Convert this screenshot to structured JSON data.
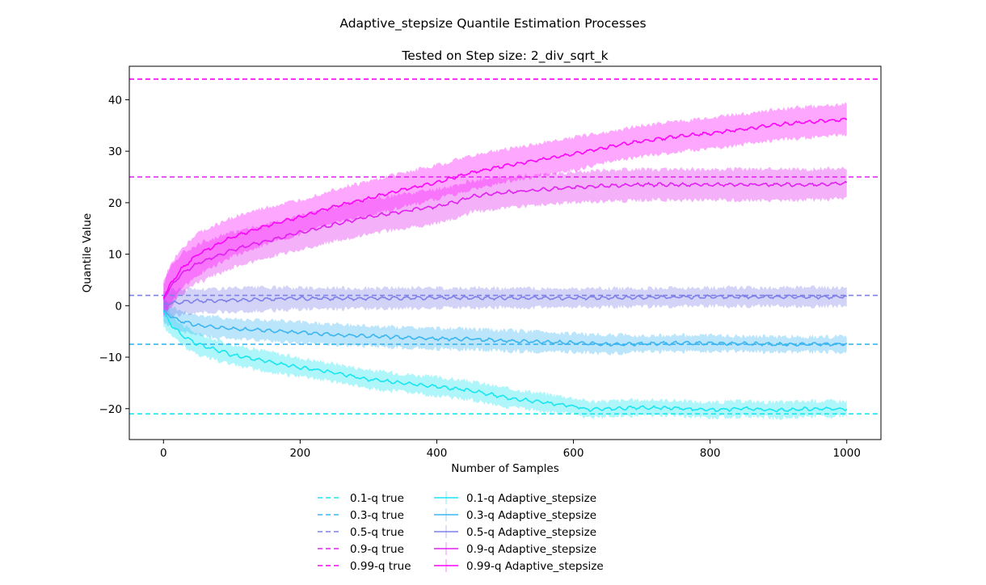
{
  "figure": {
    "suptitle": "Adaptive_stepsize Quantile Estimation Processes"
  },
  "chart_data": {
    "type": "line",
    "title": "Tested on Step size: 2_div_sqrt_k",
    "xlabel": "Number of Samples",
    "ylabel": "Quantile Value",
    "xlim": [
      -50,
      1050
    ],
    "ylim": [
      -26,
      46.5
    ],
    "xticks": [
      "0",
      "200",
      "400",
      "600",
      "800",
      "1000"
    ],
    "yticks": [
      "−20",
      "−10",
      "0",
      "10",
      "20",
      "30",
      "40"
    ],
    "grid": false,
    "legend_position": "bottom-center",
    "true_lines": [
      {
        "name": "0.1-q true",
        "value": -21.0,
        "color": "#1ae5f0"
      },
      {
        "name": "0.3-q true",
        "value": -7.5,
        "color": "#3cb5f0"
      },
      {
        "name": "0.5-q true",
        "value": 2.0,
        "color": "#7f80e8"
      },
      {
        "name": "0.9-q true",
        "value": 25.0,
        "color": "#e020f0"
      },
      {
        "name": "0.99-q true",
        "value": 44.0,
        "color": "#fb04fb"
      }
    ],
    "series": [
      {
        "name": "0.1-q Adaptive_stepsize",
        "color": "#1ae5f0",
        "x": [
          0,
          10,
          25,
          50,
          100,
          150,
          200,
          250,
          300,
          350,
          400,
          450,
          500,
          550,
          600,
          625,
          650,
          700,
          750,
          800,
          850,
          900,
          950,
          1000
        ],
        "y": [
          -1.0,
          -3.5,
          -5.5,
          -7.5,
          -9.5,
          -10.8,
          -12.0,
          -13.0,
          -14.3,
          -15.0,
          -15.7,
          -16.5,
          -17.8,
          -18.7,
          -19.5,
          -20.2,
          -20.0,
          -19.8,
          -19.9,
          -20.3,
          -20.0,
          -20.3,
          -20.0,
          -20.0
        ],
        "band": [
          3.0,
          2.2,
          2.0,
          2.0,
          2.0,
          2.0,
          1.8,
          1.8,
          1.8,
          1.8,
          1.8,
          1.8,
          1.8,
          1.8,
          1.6,
          1.6,
          1.5,
          1.5,
          1.5,
          1.5,
          1.5,
          1.5,
          1.5,
          1.5
        ]
      },
      {
        "name": "0.3-q Adaptive_stepsize",
        "color": "#3cb5f0",
        "x": [
          0,
          10,
          25,
          50,
          100,
          150,
          200,
          250,
          300,
          350,
          400,
          450,
          500,
          550,
          600,
          650,
          700,
          750,
          800,
          850,
          900,
          950,
          1000
        ],
        "y": [
          -0.8,
          -2.0,
          -3.0,
          -3.8,
          -4.5,
          -4.8,
          -5.2,
          -5.6,
          -5.9,
          -6.2,
          -6.4,
          -6.5,
          -6.8,
          -7.0,
          -7.2,
          -7.5,
          -7.4,
          -7.3,
          -7.3,
          -7.4,
          -7.5,
          -7.5,
          -7.5
        ],
        "band": [
          2.5,
          2.0,
          2.0,
          2.0,
          2.0,
          2.0,
          2.0,
          2.0,
          2.0,
          2.0,
          2.0,
          2.0,
          2.0,
          2.0,
          1.8,
          1.8,
          1.6,
          1.6,
          1.5,
          1.5,
          1.5,
          1.5,
          1.5
        ]
      },
      {
        "name": "0.5-q Adaptive_stepsize",
        "color": "#7f80e8",
        "x": [
          0,
          10,
          25,
          50,
          100,
          150,
          200,
          300,
          400,
          500,
          600,
          700,
          800,
          900,
          1000
        ],
        "y": [
          0.3,
          0.5,
          0.7,
          0.9,
          1.1,
          1.3,
          1.4,
          1.4,
          1.5,
          1.5,
          1.5,
          1.6,
          1.7,
          1.7,
          1.7
        ],
        "band": [
          2.5,
          2.5,
          2.5,
          2.3,
          2.3,
          2.2,
          2.1,
          2.0,
          2.0,
          1.9,
          1.8,
          1.8,
          1.8,
          1.8,
          1.8
        ]
      },
      {
        "name": "0.9-q Adaptive_stepsize",
        "color": "#e020f0",
        "x": [
          0,
          10,
          25,
          50,
          100,
          150,
          200,
          250,
          300,
          350,
          400,
          430,
          450,
          500,
          550,
          600,
          650,
          700,
          750,
          800,
          850,
          900,
          950,
          1000
        ],
        "y": [
          1.2,
          3.5,
          6.0,
          8.2,
          10.8,
          12.5,
          14.2,
          15.8,
          17.3,
          18.3,
          19.3,
          20.2,
          21.2,
          22.0,
          22.5,
          23.0,
          23.3,
          23.5,
          23.5,
          23.5,
          23.5,
          23.5,
          23.5,
          23.8
        ],
        "band": [
          3.0,
          4.0,
          4.0,
          3.8,
          3.5,
          3.3,
          3.3,
          3.3,
          3.3,
          3.3,
          3.3,
          3.2,
          3.0,
          3.0,
          3.0,
          3.0,
          3.0,
          3.0,
          3.0,
          3.0,
          3.0,
          3.0,
          3.0,
          3.0
        ]
      },
      {
        "name": "0.99-q Adaptive_stepsize",
        "color": "#fb04fb",
        "x": [
          0,
          10,
          25,
          50,
          100,
          150,
          200,
          250,
          300,
          350,
          400,
          450,
          500,
          550,
          600,
          650,
          700,
          750,
          800,
          850,
          900,
          950,
          1000
        ],
        "y": [
          1.5,
          4.0,
          7.0,
          10.0,
          13.3,
          15.5,
          17.2,
          19.3,
          20.8,
          22.5,
          24.0,
          25.8,
          27.2,
          28.3,
          29.5,
          30.8,
          32.0,
          32.8,
          33.5,
          34.3,
          35.2,
          35.7,
          36.2
        ],
        "band": [
          3.0,
          4.0,
          4.0,
          4.0,
          3.8,
          3.5,
          3.3,
          3.3,
          3.3,
          3.3,
          3.3,
          3.3,
          3.2,
          3.2,
          3.2,
          3.0,
          3.0,
          3.0,
          3.0,
          3.0,
          3.0,
          3.0,
          3.0
        ]
      }
    ]
  }
}
